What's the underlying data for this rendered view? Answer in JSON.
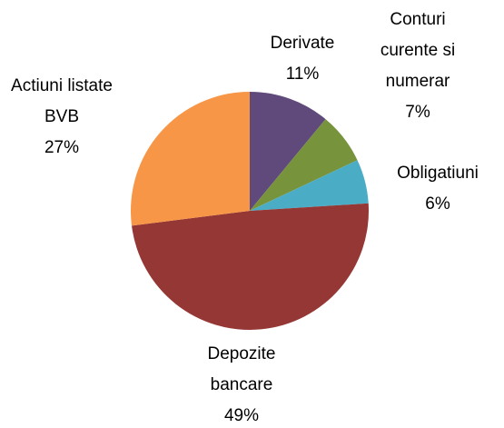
{
  "chart_data": {
    "type": "pie",
    "categories": [
      "Derivate",
      "Conturi curente si numerar",
      "Obligatiuni",
      "Depozite bancare",
      "Actiuni listate BVB"
    ],
    "values": [
      11,
      7,
      6,
      49,
      27
    ],
    "value_labels": [
      "11%",
      "7%",
      "6%",
      "49%",
      "27%"
    ],
    "colors": [
      "#604a7b",
      "#77933c",
      "#4bacc6",
      "#953735",
      "#f79646"
    ]
  }
}
